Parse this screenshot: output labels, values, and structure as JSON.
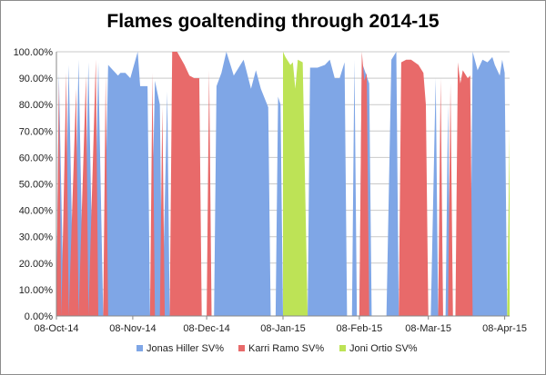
{
  "chart_data": {
    "type": "area",
    "title": "Flames goaltending through 2014-15",
    "ylim": [
      0,
      1
    ],
    "yticks": [
      0,
      0.1,
      0.2,
      0.3,
      0.4,
      0.5,
      0.6,
      0.7,
      0.8,
      0.9,
      1.0
    ],
    "ytick_labels": [
      "0.00%",
      "10.00%",
      "20.00%",
      "30.00%",
      "40.00%",
      "50.00%",
      "60.00%",
      "70.00%",
      "80.00%",
      "90.00%",
      "100.00%"
    ],
    "xlim": [
      "2014-10-08",
      "2015-04-10"
    ],
    "xtick_labels": [
      "08-Oct-14",
      "08-Nov-14",
      "08-Dec-14",
      "08-Jan-15",
      "08-Feb-15",
      "08-Mar-15",
      "08-Apr-15"
    ],
    "xtick_dates": [
      "2014-10-08",
      "2014-11-08",
      "2014-12-08",
      "2015-01-08",
      "2015-02-08",
      "2015-03-08",
      "2015-04-08"
    ],
    "grid": "horizontal",
    "legend_position": "bottom",
    "series": [
      {
        "name": "Jonas Hiller SV%",
        "color": "#7fa6e6",
        "points": [
          [
            "2014-10-08",
            0
          ],
          [
            "2014-10-09",
            0.92
          ],
          [
            "2014-10-11",
            0
          ],
          [
            "2014-10-13",
            0.95
          ],
          [
            "2014-10-15",
            0
          ],
          [
            "2014-10-17",
            0.97
          ],
          [
            "2014-10-19",
            0
          ],
          [
            "2014-10-21",
            0.96
          ],
          [
            "2014-10-23",
            0
          ],
          [
            "2014-10-25",
            0.96
          ],
          [
            "2014-10-27",
            0
          ],
          [
            "2014-10-29",
            0.95
          ],
          [
            "2014-10-31",
            0.93
          ],
          [
            "2014-11-02",
            0.91
          ],
          [
            "2014-11-03",
            0.92
          ],
          [
            "2014-11-05",
            0.92
          ],
          [
            "2014-11-07",
            0.9
          ],
          [
            "2014-11-10",
            1.0
          ],
          [
            "2014-11-11",
            0.87
          ],
          [
            "2014-11-14",
            0.87
          ],
          [
            "2014-11-15",
            0
          ],
          [
            "2014-11-17",
            0.89
          ],
          [
            "2014-11-19",
            0.8
          ],
          [
            "2014-11-20",
            0
          ],
          [
            "2014-11-22",
            0.85
          ],
          [
            "2014-11-23",
            0
          ],
          [
            "2014-12-11",
            0
          ],
          [
            "2014-12-12",
            0.87
          ],
          [
            "2014-12-14",
            0.92
          ],
          [
            "2014-12-16",
            1.0
          ],
          [
            "2014-12-19",
            0.91
          ],
          [
            "2014-12-21",
            0.94
          ],
          [
            "2014-12-23",
            0.97
          ],
          [
            "2014-12-26",
            0.86
          ],
          [
            "2014-12-28",
            0.93
          ],
          [
            "2014-12-30",
            0.86
          ],
          [
            "2015-01-02",
            0.79
          ],
          [
            "2015-01-03",
            0
          ],
          [
            "2015-01-05",
            0
          ],
          [
            "2015-01-06",
            0.83
          ],
          [
            "2015-01-07",
            0.8
          ],
          [
            "2015-01-08",
            0
          ],
          [
            "2015-01-18",
            0
          ],
          [
            "2015-01-19",
            0.94
          ],
          [
            "2015-01-22",
            0.94
          ],
          [
            "2015-01-25",
            0.95
          ],
          [
            "2015-01-27",
            0.97
          ],
          [
            "2015-01-29",
            0.9
          ],
          [
            "2015-01-31",
            0.9
          ],
          [
            "2015-02-02",
            0.96
          ],
          [
            "2015-02-03",
            0
          ],
          [
            "2015-02-05",
            0
          ],
          [
            "2015-02-06",
            0.97
          ],
          [
            "2015-02-07",
            0
          ],
          [
            "2015-02-08",
            0
          ],
          [
            "2015-02-09",
            0.96
          ],
          [
            "2015-02-12",
            0.88
          ],
          [
            "2015-02-13",
            0
          ],
          [
            "2015-02-19",
            0
          ],
          [
            "2015-02-21",
            0.97
          ],
          [
            "2015-02-23",
            1.0
          ],
          [
            "2015-02-24",
            0
          ],
          [
            "2015-03-09",
            0
          ],
          [
            "2015-03-11",
            0.9
          ],
          [
            "2015-03-12",
            0
          ],
          [
            "2015-03-15",
            0
          ],
          [
            "2015-03-16",
            0.8
          ],
          [
            "2015-03-17",
            0
          ],
          [
            "2015-03-25",
            0
          ],
          [
            "2015-03-26",
            1.0
          ],
          [
            "2015-03-28",
            0.93
          ],
          [
            "2015-03-30",
            0.97
          ],
          [
            "2015-04-01",
            0.96
          ],
          [
            "2015-04-03",
            0.98
          ],
          [
            "2015-04-04",
            0.95
          ],
          [
            "2015-04-06",
            0.91
          ],
          [
            "2015-04-07",
            0.97
          ],
          [
            "2015-04-08",
            0.92
          ],
          [
            "2015-04-09",
            0
          ]
        ]
      },
      {
        "name": "Karri Ramo SV%",
        "color": "#e86a6a",
        "points": [
          [
            "2014-10-08",
            0
          ],
          [
            "2014-10-09",
            0.89
          ],
          [
            "2014-10-10",
            0
          ],
          [
            "2014-10-12",
            0.92
          ],
          [
            "2014-10-13",
            0
          ],
          [
            "2014-10-16",
            0.86
          ],
          [
            "2014-10-17",
            0
          ],
          [
            "2014-10-20",
            0.91
          ],
          [
            "2014-10-21",
            0
          ],
          [
            "2014-10-24",
            0.97
          ],
          [
            "2014-10-25",
            0
          ],
          [
            "2014-10-27",
            0
          ],
          [
            "2014-10-28",
            0.91
          ],
          [
            "2014-10-29",
            0
          ],
          [
            "2014-11-15",
            0
          ],
          [
            "2014-11-16",
            0.92
          ],
          [
            "2014-11-17",
            0
          ],
          [
            "2014-11-19",
            0
          ],
          [
            "2014-11-20",
            0.79
          ],
          [
            "2014-11-21",
            0
          ],
          [
            "2014-11-23",
            0
          ],
          [
            "2014-11-24",
            1.0
          ],
          [
            "2014-11-26",
            1.0
          ],
          [
            "2014-11-29",
            0.95
          ],
          [
            "2014-12-01",
            0.91
          ],
          [
            "2014-12-03",
            0.9
          ],
          [
            "2014-12-05",
            0.9
          ],
          [
            "2014-12-06",
            0
          ],
          [
            "2014-12-08",
            0
          ],
          [
            "2014-12-09",
            0.93
          ],
          [
            "2014-12-10",
            0
          ],
          [
            "2015-02-08",
            0
          ],
          [
            "2015-02-09",
            1.0
          ],
          [
            "2015-02-10",
            0.89
          ],
          [
            "2015-02-11",
            0.92
          ],
          [
            "2015-02-12",
            0
          ],
          [
            "2015-02-24",
            0
          ],
          [
            "2015-02-25",
            0.96
          ],
          [
            "2015-02-27",
            0.97
          ],
          [
            "2015-03-01",
            0.97
          ],
          [
            "2015-03-04",
            0.95
          ],
          [
            "2015-03-06",
            0.92
          ],
          [
            "2015-03-07",
            0.8
          ],
          [
            "2015-03-08",
            0
          ],
          [
            "2015-03-12",
            0
          ],
          [
            "2015-03-13",
            0.9
          ],
          [
            "2015-03-14",
            0
          ],
          [
            "2015-03-16",
            0
          ],
          [
            "2015-03-17",
            0.88
          ],
          [
            "2015-03-18",
            0
          ],
          [
            "2015-03-19",
            0
          ],
          [
            "2015-03-20",
            0.96
          ],
          [
            "2015-03-21",
            0.88
          ],
          [
            "2015-03-22",
            0.93
          ],
          [
            "2015-03-24",
            0.9
          ],
          [
            "2015-03-25",
            0.91
          ],
          [
            "2015-03-26",
            0
          ]
        ]
      },
      {
        "name": "Joni Ortio SV%",
        "color": "#bde356",
        "points": [
          [
            "2015-01-08",
            0
          ],
          [
            "2015-01-08",
            1.0
          ],
          [
            "2015-01-09",
            0.98
          ],
          [
            "2015-01-11",
            0.95
          ],
          [
            "2015-01-12",
            0.96
          ],
          [
            "2015-01-13",
            0.86
          ],
          [
            "2015-01-14",
            0.97
          ],
          [
            "2015-01-16",
            0.96
          ],
          [
            "2015-01-18",
            0
          ],
          [
            "2015-04-09",
            0
          ],
          [
            "2015-04-10",
            0.7
          ],
          [
            "2015-04-10",
            0
          ]
        ]
      }
    ]
  }
}
